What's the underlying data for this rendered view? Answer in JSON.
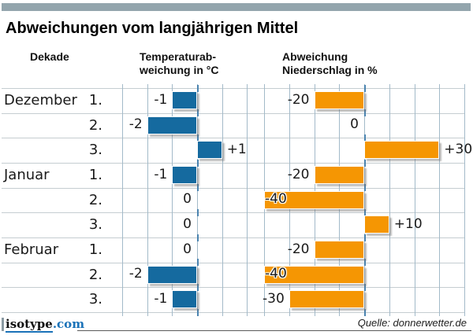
{
  "header": {
    "title": "Abweichungen vom langjährigen Mittel",
    "col_dekade": "Dekade",
    "col_temp_line1": "Temperaturab-",
    "col_temp_line2": "weichung in °C",
    "col_precip_line1": "Abweichung",
    "col_precip_line2": "Niederschlag in %"
  },
  "footer": {
    "logo_main": "isotype",
    "logo_suffix": ".com",
    "source": "Quelle: donnerwetter.de"
  },
  "colors": {
    "top_bar": "#93A5AD",
    "temp_bar": "#156A9F",
    "precip_bar": "#F59603",
    "grid_vertical": "#A3BAC9",
    "row_line": "#C5CDD1",
    "zero_dash": "#4B84B0",
    "logo_blue": "#1A72B8"
  },
  "chart_data": {
    "type": "bar",
    "orientation": "horizontal",
    "title": "Abweichungen vom langjährigen Mittel",
    "row_labels": [
      {
        "month": "Dezember",
        "decade": "1."
      },
      {
        "month": "",
        "decade": "2."
      },
      {
        "month": "",
        "decade": "3."
      },
      {
        "month": "Januar",
        "decade": "1."
      },
      {
        "month": "",
        "decade": "2."
      },
      {
        "month": "",
        "decade": "3."
      },
      {
        "month": "Februar",
        "decade": "1."
      },
      {
        "month": "",
        "decade": "2."
      },
      {
        "month": "",
        "decade": "3."
      }
    ],
    "series": [
      {
        "name": "Temperaturabweichung in °C",
        "values": [
          -1,
          -2,
          1,
          -1,
          0,
          0,
          0,
          -2,
          -1
        ],
        "axis": {
          "min": -3,
          "max": 2,
          "step": 1
        },
        "value_labels": [
          "-1",
          "-2",
          "+1",
          "-1",
          "0",
          "0",
          "0",
          "-2",
          "-1"
        ]
      },
      {
        "name": "Abweichung Niederschlag in %",
        "values": [
          -20,
          0,
          30,
          -20,
          -40,
          10,
          -20,
          -40,
          -30
        ],
        "axis": {
          "min": -40,
          "max": 40,
          "step": 10
        },
        "value_labels": [
          "-20",
          "0",
          "+30",
          "-20",
          "-40",
          "+10",
          "-20",
          "-40",
          "-30"
        ]
      }
    ],
    "grid": true,
    "legend": false
  }
}
